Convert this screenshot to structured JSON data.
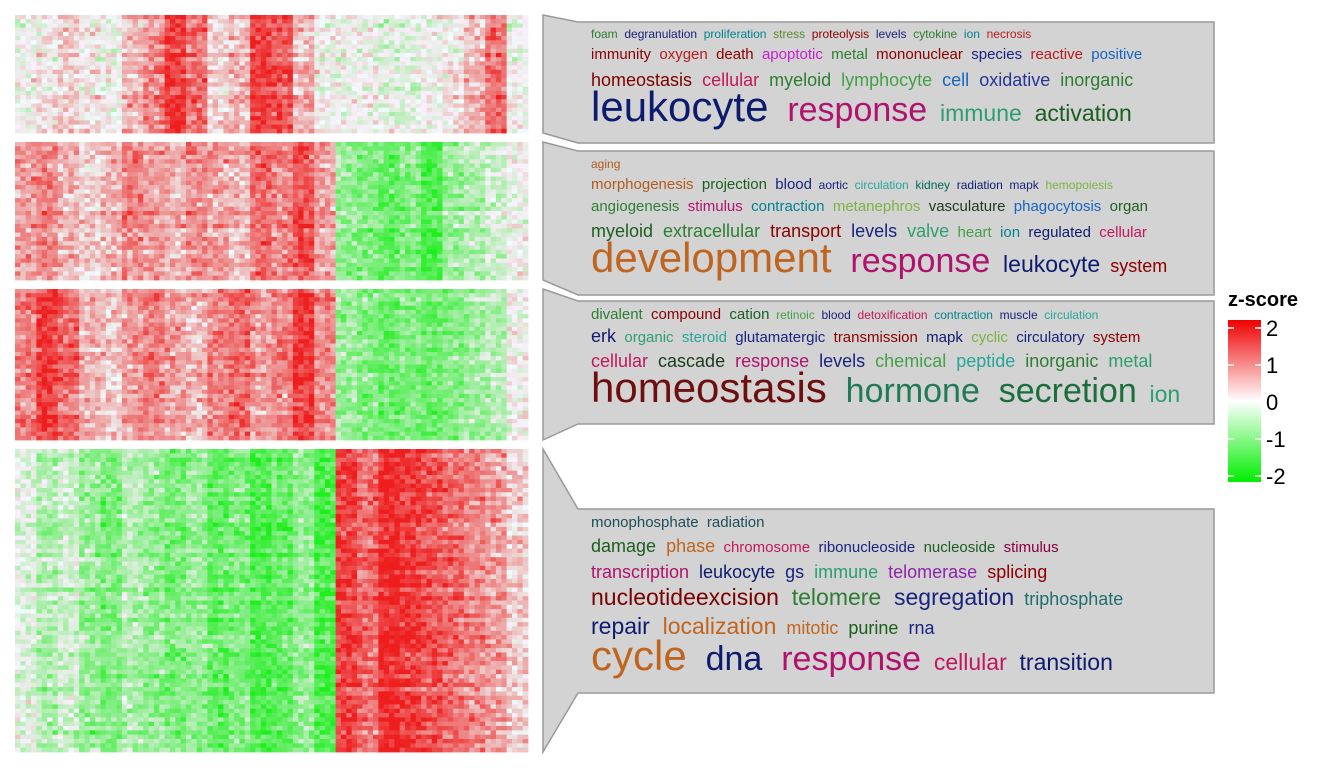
{
  "chart_data": {
    "type": "heatmap",
    "description_of_clusters": "",
    "color_scale": {
      "title": "z-score",
      "min": -2,
      "max": 2,
      "ticks": [
        2,
        1,
        0,
        -1,
        -2
      ],
      "low_color": "#00ee00",
      "mid_color": "#ffffff",
      "high_color": "#ee0000"
    },
    "clusters": [
      {
        "pattern": [
          0.0,
          0.1,
          0.2,
          0.1,
          0.0,
          0.3,
          0.5,
          0.8,
          0.6,
          0.2,
          0.3,
          0.8,
          0.7,
          0.3,
          0.0,
          0.0,
          0.0,
          -0.1,
          -0.1,
          0.0,
          0.1,
          0.3,
          0.6,
          0.0
        ],
        "wordcloud": [
          [
            {
              "text": "foam",
              "size": 1,
              "color": "#2e7d32"
            },
            {
              "text": "degranulation",
              "size": 1,
              "color": "#1a237e"
            },
            {
              "text": "proliferation",
              "size": 1,
              "color": "#00838f"
            },
            {
              "text": "stress",
              "size": 1,
              "color": "#558b2f"
            },
            {
              "text": "proteolysis",
              "size": 1,
              "color": "#8b0000"
            },
            {
              "text": "levels",
              "size": 1,
              "color": "#1a237e"
            },
            {
              "text": "cytokine",
              "size": 1,
              "color": "#2e7d32"
            },
            {
              "text": "ion",
              "size": 1,
              "color": "#00838f"
            },
            {
              "text": "necrosis",
              "size": 1,
              "color": "#b71c1c"
            }
          ],
          [
            {
              "text": "immunity",
              "size": 2,
              "color": "#8b0000"
            },
            {
              "text": "oxygen",
              "size": 2,
              "color": "#b71c1c"
            },
            {
              "text": "death",
              "size": 2,
              "color": "#8b0000"
            },
            {
              "text": "apoptotic",
              "size": 2,
              "color": "#c51fd1"
            },
            {
              "text": "metal",
              "size": 2,
              "color": "#2e7d32"
            },
            {
              "text": "mononuclear",
              "size": 2,
              "color": "#8b0000"
            },
            {
              "text": "species",
              "size": 2,
              "color": "#1a237e"
            },
            {
              "text": "reactive",
              "size": 2,
              "color": "#b71c1c"
            },
            {
              "text": "positive",
              "size": 2,
              "color": "#1565c0"
            }
          ],
          [
            {
              "text": "homeostasis",
              "size": 3,
              "color": "#7b0000"
            },
            {
              "text": "cellular",
              "size": 3,
              "color": "#c2185b"
            },
            {
              "text": "myeloid",
              "size": 3,
              "color": "#2e7d32"
            },
            {
              "text": "lymphocyte",
              "size": 3,
              "color": "#43a047"
            },
            {
              "text": "cell",
              "size": 3,
              "color": "#1565c0"
            },
            {
              "text": "oxidative",
              "size": 3,
              "color": "#283593"
            },
            {
              "text": "inorganic",
              "size": 3,
              "color": "#2e7d32"
            }
          ],
          [
            {
              "text": "leukocyte",
              "size": 6,
              "color": "#0d1b6e"
            },
            {
              "text": "response",
              "size": 5,
              "color": "#b0136e"
            },
            {
              "text": "immune",
              "size": 4,
              "color": "#2e9e6e"
            },
            {
              "text": "activation",
              "size": 4,
              "color": "#1b5e20"
            }
          ]
        ]
      },
      {
        "pattern": [
          0.4,
          0.5,
          0.3,
          0.2,
          0.3,
          0.5,
          0.4,
          0.3,
          0.5,
          0.4,
          0.3,
          0.6,
          0.5,
          0.7,
          0.4,
          -0.4,
          -0.5,
          -0.6,
          -0.5,
          -0.7,
          -0.4,
          -0.3,
          -0.2,
          0.0
        ],
        "wordcloud": [
          [
            {
              "text": "aging",
              "size": 1,
              "color": "#b35a1f"
            }
          ],
          [
            {
              "text": "morphogenesis",
              "size": 2,
              "color": "#b35a1f"
            },
            {
              "text": "projection",
              "size": 2,
              "color": "#1b5e20"
            },
            {
              "text": "blood",
              "size": 2,
              "color": "#1a237e"
            },
            {
              "text": "aortic",
              "size": 1,
              "color": "#1a237e"
            },
            {
              "text": "circulation",
              "size": 1,
              "color": "#26a69a"
            },
            {
              "text": "kidney",
              "size": 1,
              "color": "#00695c"
            },
            {
              "text": "radiation",
              "size": 1,
              "color": "#0d1b6e"
            },
            {
              "text": "mapk",
              "size": 1,
              "color": "#1a237e"
            },
            {
              "text": "hemopoiesis",
              "size": 1,
              "color": "#7cb342"
            }
          ],
          [
            {
              "text": "angiogenesis",
              "size": 2,
              "color": "#2e7d32"
            },
            {
              "text": "stimulus",
              "size": 2,
              "color": "#b0136e"
            },
            {
              "text": "contraction",
              "size": 2,
              "color": "#00838f"
            },
            {
              "text": "metanephros",
              "size": 2,
              "color": "#7cb342"
            },
            {
              "text": "vasculature",
              "size": 2,
              "color": "#1b3a1b"
            },
            {
              "text": "phagocytosis",
              "size": 2,
              "color": "#1565c0"
            },
            {
              "text": "organ",
              "size": 2,
              "color": "#1b5e20"
            }
          ],
          [
            {
              "text": "myeloid",
              "size": 3,
              "color": "#1b5e20"
            },
            {
              "text": "extracellular",
              "size": 3,
              "color": "#2e7d32"
            },
            {
              "text": "transport",
              "size": 3,
              "color": "#8b0000"
            },
            {
              "text": "levels",
              "size": 3,
              "color": "#1a237e"
            },
            {
              "text": "valve",
              "size": 3,
              "color": "#2e9e6e"
            },
            {
              "text": "heart",
              "size": 2,
              "color": "#43a047"
            },
            {
              "text": "ion",
              "size": 2,
              "color": "#00838f"
            },
            {
              "text": "regulated",
              "size": 2,
              "color": "#0d1b6e"
            },
            {
              "text": "cellular",
              "size": 2,
              "color": "#c2185b"
            }
          ],
          [
            {
              "text": "development",
              "size": 6,
              "color": "#c0651f"
            },
            {
              "text": "response",
              "size": 5,
              "color": "#b0136e"
            },
            {
              "text": "leukocyte",
              "size": 4,
              "color": "#0d1b6e"
            },
            {
              "text": "system",
              "size": 3,
              "color": "#8b0000"
            }
          ]
        ]
      },
      {
        "pattern": [
          0.5,
          0.8,
          0.6,
          0.3,
          0.2,
          0.4,
          0.5,
          0.4,
          0.3,
          0.5,
          0.6,
          0.4,
          0.5,
          0.8,
          0.5,
          -0.4,
          -0.5,
          -0.6,
          -0.5,
          -0.6,
          -0.5,
          -0.4,
          -0.3,
          0.0
        ],
        "wordcloud": [
          [
            {
              "text": "divalent",
              "size": 2,
              "color": "#2e7d32"
            },
            {
              "text": "compound",
              "size": 2,
              "color": "#8b0000"
            },
            {
              "text": "cation",
              "size": 2,
              "color": "#1b5e20"
            },
            {
              "text": "retinoic",
              "size": 1,
              "color": "#43a047"
            },
            {
              "text": "blood",
              "size": 1,
              "color": "#1a237e"
            },
            {
              "text": "detoxification",
              "size": 1,
              "color": "#c2185b"
            },
            {
              "text": "contraction",
              "size": 1,
              "color": "#00838f"
            },
            {
              "text": "muscle",
              "size": 1,
              "color": "#1a237e"
            },
            {
              "text": "circulation",
              "size": 1,
              "color": "#26a69a"
            }
          ],
          [
            {
              "text": "erk",
              "size": 3,
              "color": "#0d1b6e"
            },
            {
              "text": "organic",
              "size": 2,
              "color": "#2e9e6e"
            },
            {
              "text": "steroid",
              "size": 2,
              "color": "#26a69a"
            },
            {
              "text": "glutamatergic",
              "size": 2,
              "color": "#1a237e"
            },
            {
              "text": "transmission",
              "size": 2,
              "color": "#8b0000"
            },
            {
              "text": "mapk",
              "size": 2,
              "color": "#0d1b6e"
            },
            {
              "text": "cyclic",
              "size": 2,
              "color": "#7cb342"
            },
            {
              "text": "circulatory",
              "size": 2,
              "color": "#1a237e"
            },
            {
              "text": "system",
              "size": 2,
              "color": "#8b0000"
            }
          ],
          [
            {
              "text": "cellular",
              "size": 3,
              "color": "#c2185b"
            },
            {
              "text": "cascade",
              "size": 3,
              "color": "#1b3a1b"
            },
            {
              "text": "response",
              "size": 3,
              "color": "#b0136e"
            },
            {
              "text": "levels",
              "size": 3,
              "color": "#1a237e"
            },
            {
              "text": "chemical",
              "size": 3,
              "color": "#43a047"
            },
            {
              "text": "peptide",
              "size": 3,
              "color": "#26a69a"
            },
            {
              "text": "inorganic",
              "size": 3,
              "color": "#2e7d32"
            },
            {
              "text": "metal",
              "size": 3,
              "color": "#2e9e6e"
            }
          ],
          [
            {
              "text": "homeostasis",
              "size": 6,
              "color": "#6d0f0f"
            },
            {
              "text": "hormone",
              "size": 5,
              "color": "#1f7a55"
            },
            {
              "text": "secretion",
              "size": 5,
              "color": "#1b6e3b"
            },
            {
              "text": "ion",
              "size": 4,
              "color": "#2e9e6e"
            }
          ]
        ]
      },
      {
        "pattern": [
          -0.1,
          -0.3,
          -0.2,
          -0.4,
          -0.5,
          -0.3,
          -0.4,
          -0.5,
          -0.4,
          -0.6,
          -0.5,
          -0.7,
          -0.6,
          -0.4,
          -0.7,
          0.8,
          0.6,
          0.9,
          0.8,
          0.7,
          0.6,
          0.5,
          0.4,
          0.2
        ],
        "wordcloud": [
          [
            {
              "text": "monophosphate",
              "size": 2,
              "color": "#1f4e5a"
            },
            {
              "text": "radiation",
              "size": 2,
              "color": "#1f4e5a"
            }
          ],
          [
            {
              "text": "damage",
              "size": 3,
              "color": "#1b5e20"
            },
            {
              "text": "phase",
              "size": 3,
              "color": "#c0651f"
            },
            {
              "text": "chromosome",
              "size": 2,
              "color": "#c2185b"
            },
            {
              "text": "ribonucleoside",
              "size": 2,
              "color": "#1a237e"
            },
            {
              "text": "nucleoside",
              "size": 2,
              "color": "#1b5e20"
            },
            {
              "text": "stimulus",
              "size": 2,
              "color": "#8b0040"
            }
          ],
          [
            {
              "text": "transcription",
              "size": 3,
              "color": "#b0136e"
            },
            {
              "text": "leukocyte",
              "size": 3,
              "color": "#0d1b6e"
            },
            {
              "text": "gs",
              "size": 3,
              "color": "#1a237e"
            },
            {
              "text": "immune",
              "size": 3,
              "color": "#2e9e6e"
            },
            {
              "text": "telomerase",
              "size": 3,
              "color": "#8e24aa"
            },
            {
              "text": "splicing",
              "size": 3,
              "color": "#8b0000"
            }
          ],
          [
            {
              "text": "nucleotideexcision",
              "size": 4,
              "color": "#7b0000"
            },
            {
              "text": "telomere",
              "size": 4,
              "color": "#2e7d32"
            },
            {
              "text": "segregation",
              "size": 4,
              "color": "#1a237e"
            },
            {
              "text": "triphosphate",
              "size": 3,
              "color": "#1f6e6e"
            }
          ],
          [
            {
              "text": "repair",
              "size": 4,
              "color": "#0d1b6e"
            },
            {
              "text": "localization",
              "size": 4,
              "color": "#c0651f"
            },
            {
              "text": "mitotic",
              "size": 3,
              "color": "#c0651f"
            },
            {
              "text": "purine",
              "size": 3,
              "color": "#1b5e20"
            },
            {
              "text": "rna",
              "size": 3,
              "color": "#1a237e"
            }
          ],
          [
            {
              "text": "cycle",
              "size": 6,
              "color": "#c0651f"
            },
            {
              "text": "dna",
              "size": 5,
              "color": "#0d1b6e"
            },
            {
              "text": "response",
              "size": 5,
              "color": "#b0136e"
            },
            {
              "text": "cellular",
              "size": 4,
              "color": "#c2185b"
            },
            {
              "text": "transition",
              "size": 4,
              "color": "#0d1b6e"
            }
          ]
        ]
      }
    ]
  }
}
